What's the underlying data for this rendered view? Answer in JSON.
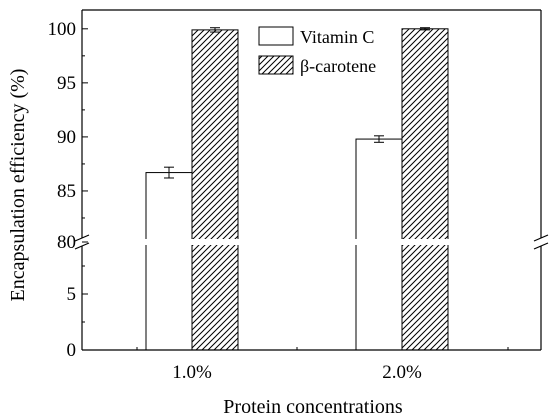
{
  "chart_data": {
    "type": "bar",
    "xlabel": "Protein concentrations",
    "ylabel": "Encapsulation efficiency (%)",
    "categories": [
      "1.0%",
      "2.0%"
    ],
    "series": [
      {
        "name": "Vitamin C",
        "values": [
          86.7,
          89.8
        ],
        "errors": [
          0.5,
          0.3
        ],
        "fill": "white"
      },
      {
        "name": "β-carotene",
        "values": [
          99.9,
          100.0
        ],
        "errors": [
          0.2,
          0.1
        ],
        "fill": "hatched"
      }
    ],
    "y_axis": {
      "broken": true,
      "lower_segment": {
        "range": [
          0,
          10
        ],
        "ticks": [
          "0",
          "5"
        ]
      },
      "upper_segment": {
        "range": [
          80,
          101
        ],
        "ticks": [
          "80",
          "85",
          "90",
          "95",
          "100"
        ]
      }
    },
    "legend_position": "top-center",
    "grid": false
  }
}
